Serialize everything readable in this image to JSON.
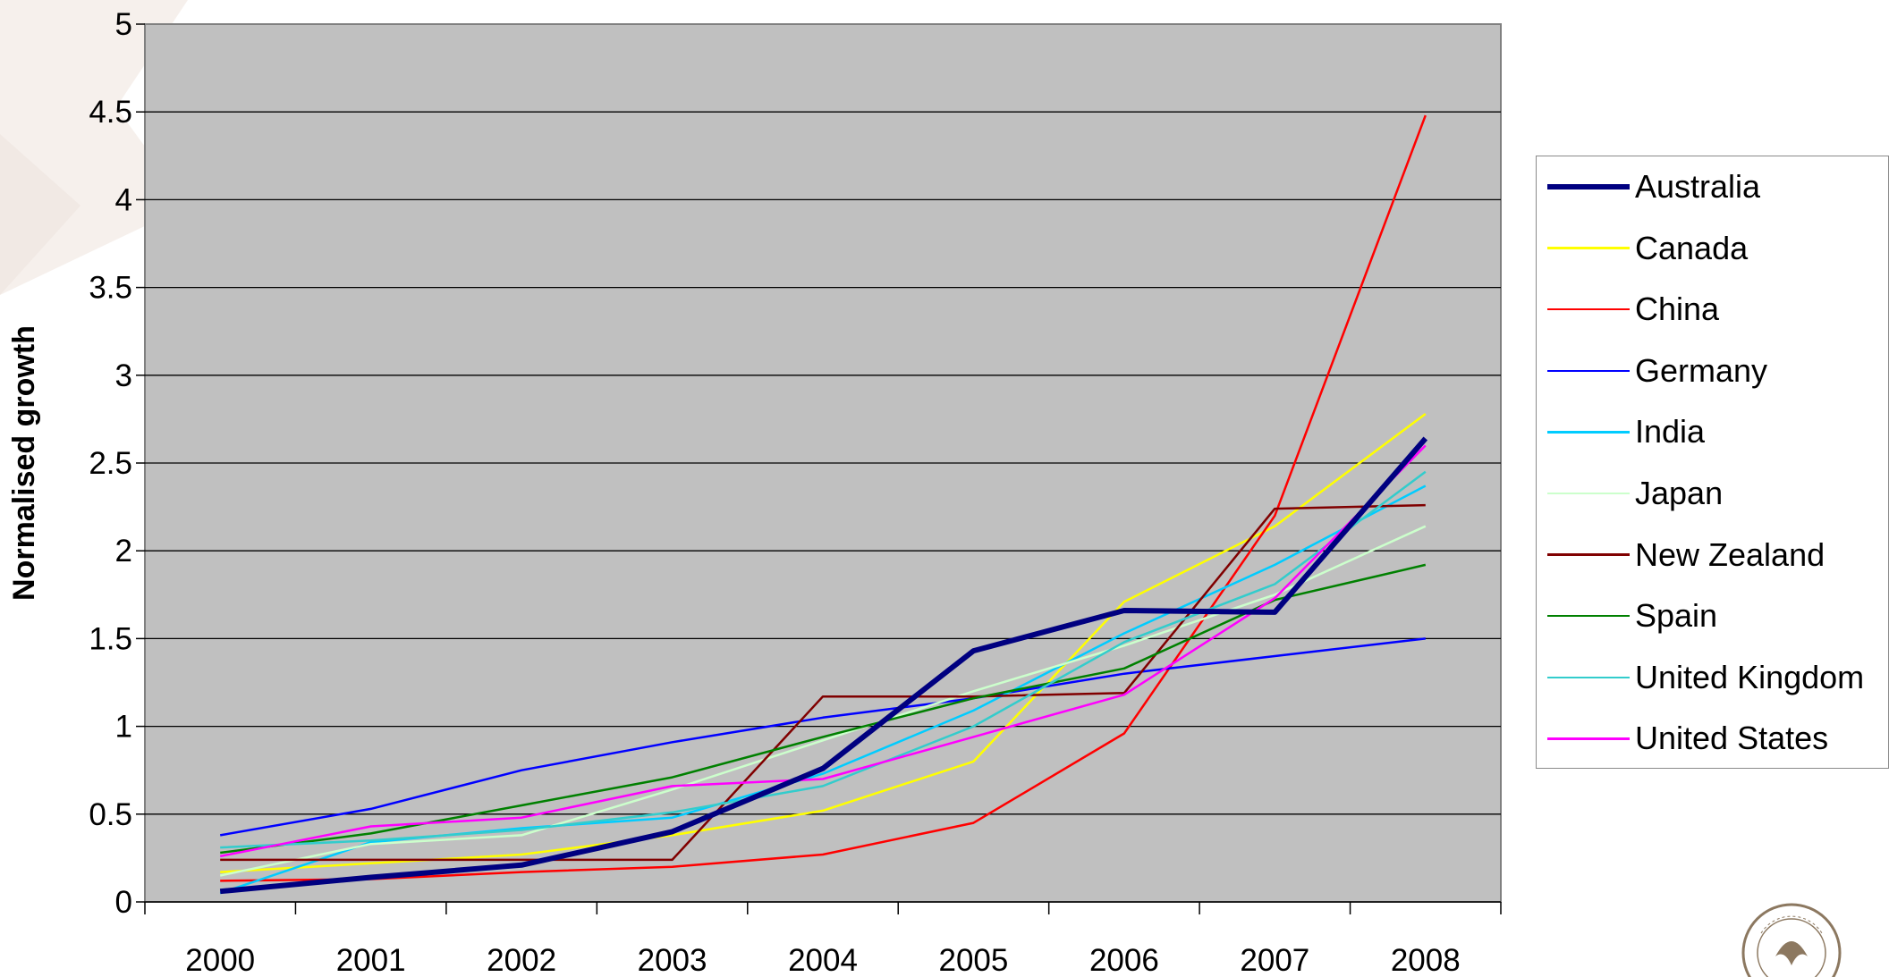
{
  "chart_data": {
    "type": "line",
    "title": "",
    "xlabel": "",
    "ylabel": "Normalised growth",
    "ylim": [
      0,
      5
    ],
    "yticks": [
      "0",
      "0.5",
      "1",
      "1.5",
      "2",
      "2.5",
      "3",
      "3.5",
      "4",
      "4.5",
      "5"
    ],
    "categories": [
      "2000",
      "2001",
      "2002",
      "2003",
      "2004",
      "2005",
      "2006",
      "2007",
      "2008"
    ],
    "grid": true,
    "legend_position": "right",
    "series": [
      {
        "name": "Australia",
        "color": "#000080",
        "width": 6,
        "values": [
          0.06,
          0.14,
          0.21,
          0.4,
          0.76,
          1.43,
          1.66,
          1.65,
          2.64
        ]
      },
      {
        "name": "Canada",
        "color": "#FFFF00",
        "width": 2.5,
        "values": [
          0.17,
          0.22,
          0.27,
          0.38,
          0.52,
          0.8,
          1.71,
          2.14,
          2.78
        ]
      },
      {
        "name": "China",
        "color": "#FF0000",
        "width": 2.5,
        "values": [
          0.12,
          0.13,
          0.17,
          0.2,
          0.27,
          0.45,
          0.96,
          2.2,
          4.48
        ]
      },
      {
        "name": "Germany",
        "color": "#0000FF",
        "width": 2.5,
        "values": [
          0.38,
          0.53,
          0.75,
          0.91,
          1.05,
          1.16,
          1.3,
          1.4,
          1.5
        ]
      },
      {
        "name": "India",
        "color": "#00CCFF",
        "width": 2.5,
        "values": [
          0.05,
          0.34,
          0.42,
          0.48,
          0.73,
          1.09,
          1.53,
          1.92,
          2.37
        ]
      },
      {
        "name": "Japan",
        "color": "#CCFFCC",
        "width": 2.5,
        "values": [
          0.15,
          0.33,
          0.38,
          0.64,
          0.92,
          1.2,
          1.46,
          1.75,
          2.14
        ]
      },
      {
        "name": "New Zealand",
        "color": "#800000",
        "width": 2.5,
        "values": [
          0.24,
          0.24,
          0.24,
          0.24,
          1.17,
          1.17,
          1.19,
          2.24,
          2.26
        ]
      },
      {
        "name": "Spain",
        "color": "#008000",
        "width": 2.5,
        "values": [
          0.28,
          0.39,
          0.55,
          0.71,
          0.94,
          1.16,
          1.33,
          1.72,
          1.92
        ]
      },
      {
        "name": "United Kingdom",
        "color": "#33CCCC",
        "width": 2.5,
        "values": [
          0.31,
          0.35,
          0.41,
          0.51,
          0.66,
          1.0,
          1.48,
          1.81,
          2.45
        ]
      },
      {
        "name": "United States",
        "color": "#FF00FF",
        "width": 2.5,
        "values": [
          0.26,
          0.43,
          0.48,
          0.66,
          0.7,
          0.94,
          1.18,
          1.73,
          2.6
        ]
      }
    ]
  }
}
